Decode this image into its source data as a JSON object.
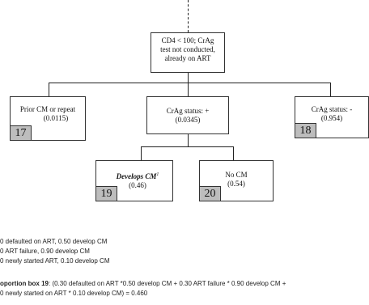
{
  "tree": {
    "root": {
      "line1": "CD4 < 100; CrAg",
      "line2": "test not conducted,",
      "line3": "already on ART"
    },
    "prior": {
      "label": "Prior CM or repeat",
      "prob": "(0.0115)",
      "number": "17"
    },
    "pos": {
      "label": "CrAg status: +",
      "prob": "(0.0345)"
    },
    "neg": {
      "label": "CrAg status: -",
      "prob": "(0.954)",
      "number": "18"
    },
    "develops": {
      "label": "Develops CM",
      "sup": "1",
      "prob": "(0.46)",
      "number": "19"
    },
    "nocm": {
      "label": "No CM",
      "prob": "(0.54)",
      "number": "20"
    }
  },
  "notes": {
    "line1": "0 defaulted on ART, 0.50 develop CM",
    "line2": "0 ART failure, 0.90 develop CM",
    "line3": "0 newly started ART, 0.10 develop CM",
    "bold_label": "oportion box 19",
    "line4_rest": ":  (0.30 defaulted on ART *0.50 develop CM +  0.30 ART failure * 0.90 develop CM +",
    "line5": "0 newly started on ART * 0.10 develop CM) = 0.460"
  }
}
